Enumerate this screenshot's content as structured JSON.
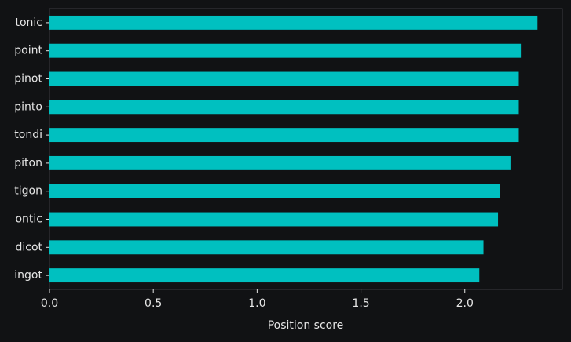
{
  "chart_data": {
    "type": "bar",
    "orientation": "horizontal",
    "categories": [
      "tonic",
      "point",
      "pinot",
      "pinto",
      "tondi",
      "piton",
      "tigon",
      "ontic",
      "dicot",
      "ingot"
    ],
    "values": [
      2.35,
      2.27,
      2.26,
      2.26,
      2.26,
      2.22,
      2.17,
      2.16,
      2.09,
      2.07
    ],
    "xlabel": "Position score",
    "ylabel": "",
    "xlim": [
      0,
      2.47
    ],
    "xticks": [
      "0.0",
      "0.5",
      "1.0",
      "1.5",
      "2.0"
    ],
    "grid": false,
    "bar_color": "#00c0c0",
    "background": "#111214",
    "frame_color": "#3a3b3f",
    "text_color": "#e6e6e6"
  }
}
